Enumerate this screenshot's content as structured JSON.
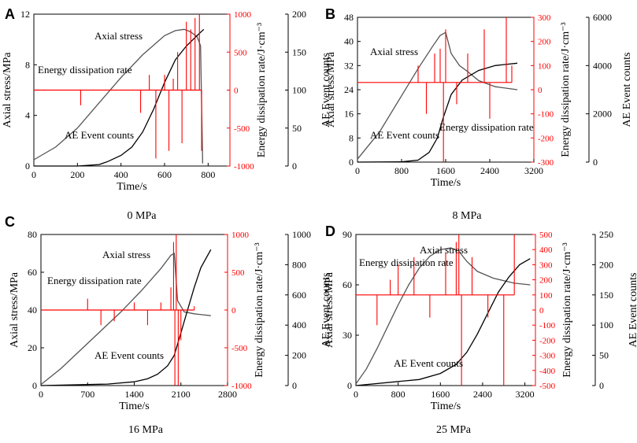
{
  "figure": {
    "right_axis1_label": "Energy dissipation rate/J·cm⁻³",
    "right_axis2_label": "AE Event counts",
    "series_names": {
      "stress": "Axial stress",
      "energy": "Energy dissipation rate",
      "ae": "AE Event counts"
    }
  },
  "colors": {
    "stress": "#555555",
    "ae": "#000000",
    "energy": "#ff0000",
    "axis": "#000000",
    "right_axis1": "#ff0000"
  },
  "chart_data": [
    {
      "id": "A",
      "type": "line",
      "caption": "0 MPa",
      "xlabel": "Time/s",
      "ylabel": "Axial stress/MPa",
      "xlim": [
        0,
        900
      ],
      "xticks": [
        0,
        200,
        400,
        600,
        800
      ],
      "ylim": [
        0,
        12
      ],
      "yticks": [
        0,
        4,
        8,
        12
      ],
      "y2lim": [
        -1000,
        1000
      ],
      "y2ticks": [
        -1000,
        -500,
        0,
        500,
        1000
      ],
      "y3lim": [
        0,
        200
      ],
      "y3ticks": [
        0,
        50,
        100,
        150,
        200
      ],
      "series": [
        {
          "name": "Axial stress",
          "axis": "left",
          "x": [
            0,
            100,
            200,
            300,
            400,
            500,
            600,
            650,
            690,
            720,
            750,
            765,
            775
          ],
          "y": [
            0.5,
            1.5,
            3.0,
            5.0,
            7.0,
            8.8,
            10.3,
            10.7,
            10.8,
            10.6,
            10.2,
            9.5,
            0.2
          ]
        },
        {
          "name": "AE Event counts",
          "axis": "right2",
          "x": [
            0,
            200,
            300,
            340,
            400,
            450,
            500,
            550,
            600,
            650,
            700,
            750,
            780
          ],
          "y": [
            0,
            0,
            2,
            6,
            14,
            25,
            45,
            75,
            110,
            140,
            158,
            172,
            180
          ]
        },
        {
          "name": "Energy dissipation rate",
          "axis": "right1",
          "baseline": 0,
          "x": [
            215,
            490,
            530,
            560,
            600,
            620,
            640,
            660,
            680,
            700,
            720,
            740,
            760,
            770
          ],
          "y": [
            -200,
            -300,
            200,
            -900,
            200,
            -800,
            150,
            500,
            -700,
            900,
            800,
            950,
            1000,
            -800
          ]
        }
      ],
      "annotations": [
        {
          "text": "Axial stress"
        },
        {
          "text": "Energy dissipation rate"
        },
        {
          "text": "AE Event counts"
        }
      ]
    },
    {
      "id": "B",
      "type": "line",
      "caption": "8 MPa",
      "xlabel": "Time/s",
      "ylabel": "Axial stress/MPa",
      "xlim": [
        0,
        3200
      ],
      "xticks": [
        0,
        800,
        1600,
        2400,
        3200
      ],
      "ylim": [
        0,
        48
      ],
      "yticks": [
        0,
        8,
        16,
        24,
        32,
        40,
        48
      ],
      "y2lim": [
        -300,
        300
      ],
      "y2ticks": [
        -300,
        -200,
        -100,
        0,
        100,
        200,
        300
      ],
      "y3lim": [
        0,
        6000
      ],
      "y3ticks": [
        0,
        2000,
        4000,
        6000
      ],
      "series": [
        {
          "name": "Axial stress",
          "axis": "left",
          "x": [
            0,
            400,
            800,
            1100,
            1350,
            1500,
            1600,
            1700,
            1850,
            2000,
            2200,
            2500,
            2900
          ],
          "y": [
            1,
            10,
            22,
            31,
            38,
            42,
            43,
            36,
            32,
            30,
            27,
            25,
            24
          ]
        },
        {
          "name": "AE Event counts",
          "axis": "right2",
          "x": [
            0,
            800,
            1100,
            1300,
            1450,
            1550,
            1700,
            1900,
            2200,
            2500,
            2900
          ],
          "y": [
            0,
            10,
            80,
            400,
            1000,
            1800,
            2800,
            3400,
            3800,
            4000,
            4100
          ]
        },
        {
          "name": "Energy dissipation rate",
          "axis": "right1",
          "baseline": 30,
          "x": [
            1100,
            1250,
            1400,
            1500,
            1560,
            1600,
            1800,
            2000,
            2300,
            2400,
            2700,
            2800
          ],
          "y": [
            100,
            -100,
            150,
            170,
            -300,
            250,
            -60,
            150,
            250,
            -120,
            300,
            100
          ]
        }
      ],
      "annotations": [
        {
          "text": "Axial stress"
        },
        {
          "text": "Energy dissipation rate"
        },
        {
          "text": "AE Event counts"
        }
      ]
    },
    {
      "id": "C",
      "type": "line",
      "caption": "16 MPa",
      "xlabel": "Time/s",
      "ylabel": "Axial stress/MPa",
      "xlim": [
        0,
        2800
      ],
      "xticks": [
        0,
        700,
        1400,
        2100,
        2800
      ],
      "ylim": [
        0,
        80
      ],
      "yticks": [
        0,
        20,
        40,
        60,
        80
      ],
      "y2lim": [
        -1000,
        1000
      ],
      "y2ticks": [
        -1000,
        -500,
        0,
        500,
        1000
      ],
      "y3lim": [
        0,
        1000
      ],
      "y3ticks": [
        0,
        200,
        400,
        600,
        800,
        1000
      ],
      "series": [
        {
          "name": "Axial stress",
          "axis": "left",
          "x": [
            0,
            300,
            600,
            900,
            1200,
            1500,
            1800,
            1950,
            2000,
            2050,
            2150,
            2300,
            2550
          ],
          "y": [
            0.5,
            9,
            19,
            29,
            39,
            50,
            62,
            69,
            70,
            45,
            39,
            38,
            37
          ]
        },
        {
          "name": "AE Event counts",
          "axis": "right2",
          "x": [
            0,
            1000,
            1400,
            1600,
            1750,
            1900,
            2000,
            2100,
            2200,
            2300,
            2400,
            2550
          ],
          "y": [
            0,
            10,
            25,
            45,
            75,
            130,
            200,
            350,
            500,
            650,
            780,
            900
          ]
        },
        {
          "name": "Energy dissipation rate",
          "axis": "right1",
          "baseline": 0,
          "x": [
            700,
            900,
            1100,
            1400,
            1600,
            1800,
            1950,
            1990,
            2010,
            2030,
            2060,
            2100,
            2300
          ],
          "y": [
            150,
            -200,
            -150,
            100,
            -200,
            100,
            300,
            900,
            -1000,
            1000,
            -1000,
            -400,
            50
          ]
        }
      ],
      "annotations": [
        {
          "text": "Axial stress"
        },
        {
          "text": "Energy dissipation rate"
        },
        {
          "text": "AE Event counts"
        }
      ]
    },
    {
      "id": "D",
      "type": "line",
      "caption": "25 MPa",
      "xlabel": "Time/s",
      "ylabel": "Axial stress/MPa",
      "xlim": [
        0,
        3400
      ],
      "xticks": [
        0,
        800,
        1600,
        2400,
        3200
      ],
      "ylim": [
        0,
        90
      ],
      "yticks": [
        0,
        30,
        60,
        90
      ],
      "y2lim": [
        -500,
        500
      ],
      "y2ticks": [
        -500,
        -400,
        -300,
        -200,
        -100,
        0,
        100,
        200,
        300,
        400,
        500
      ],
      "y3lim": [
        0,
        250
      ],
      "y3ticks": [
        0,
        50,
        100,
        150,
        200,
        250
      ],
      "series": [
        {
          "name": "Axial stress",
          "axis": "left",
          "x": [
            0,
            200,
            400,
            600,
            800,
            1000,
            1200,
            1400,
            1600,
            1800,
            1950,
            2100,
            2300,
            2600,
            3000,
            3300
          ],
          "y": [
            1,
            10,
            22,
            35,
            48,
            60,
            70,
            77,
            81,
            82,
            80,
            74,
            68,
            64,
            61,
            60
          ]
        },
        {
          "name": "AE Event counts",
          "axis": "right2",
          "x": [
            0,
            1200,
            1600,
            1900,
            2100,
            2300,
            2500,
            2700,
            2900,
            3100,
            3300
          ],
          "y": [
            0,
            10,
            20,
            35,
            55,
            85,
            120,
            155,
            180,
            200,
            210
          ]
        },
        {
          "name": "Energy dissipation rate",
          "axis": "right1",
          "baseline": 100,
          "x": [
            400,
            650,
            800,
            1100,
            1400,
            1700,
            1900,
            1950,
            2000,
            2200,
            2500,
            2800,
            3000
          ],
          "y": [
            -100,
            200,
            300,
            350,
            -50,
            380,
            450,
            500,
            -500,
            350,
            -50,
            -500,
            500
          ]
        }
      ],
      "annotations": [
        {
          "text": "Axial stress"
        },
        {
          "text": "Energy dissipation rate"
        },
        {
          "text": "AE Event counts"
        }
      ]
    }
  ]
}
